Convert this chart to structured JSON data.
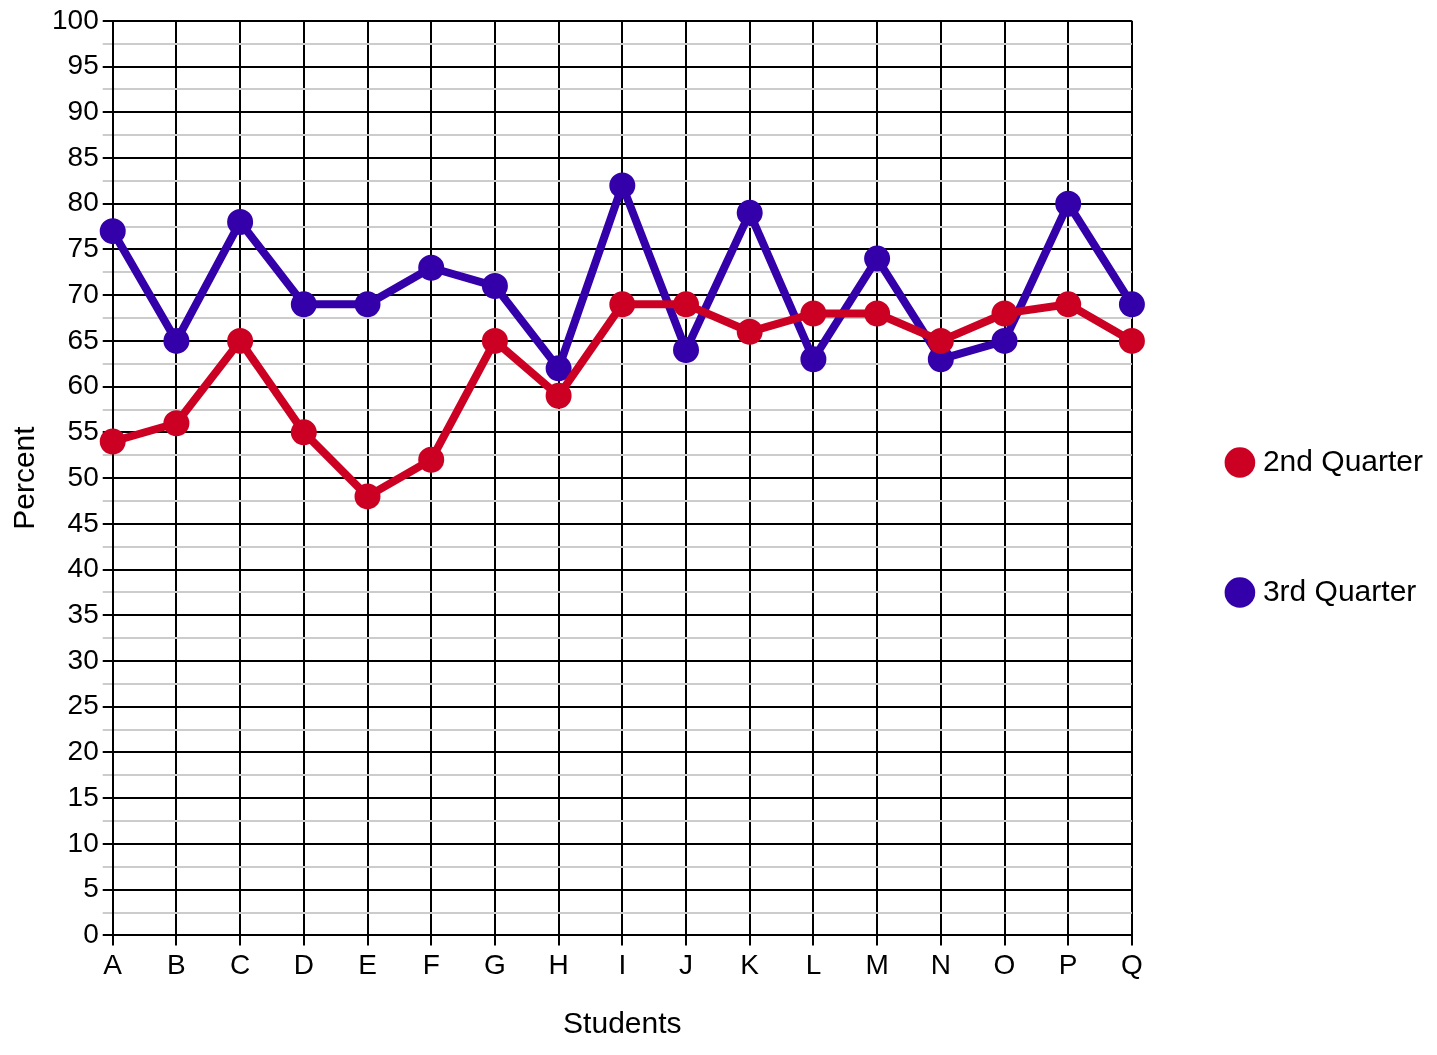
{
  "chart_data": {
    "type": "line",
    "xlabel": "Students",
    "ylabel": "Percent",
    "categories": [
      "A",
      "B",
      "C",
      "D",
      "E",
      "F",
      "G",
      "H",
      "I",
      "J",
      "K",
      "L",
      "M",
      "N",
      "O",
      "P",
      "Q"
    ],
    "series": [
      {
        "name": "2nd Quarter",
        "color": "#cc0022",
        "values": [
          54,
          56,
          65,
          55,
          48,
          52,
          65,
          59,
          69,
          69,
          66,
          68,
          68,
          65,
          68,
          69,
          65
        ]
      },
      {
        "name": "3rd Quarter",
        "color": "#3300aa",
        "values": [
          77,
          65,
          78,
          69,
          69,
          73,
          71,
          62,
          82,
          64,
          79,
          63,
          74,
          63,
          65,
          80,
          69
        ]
      }
    ],
    "ylim": [
      0,
      100
    ],
    "yticks": [
      0,
      {
        "value": 2.5,
        "label": null
      },
      5,
      {
        "value": 7.5,
        "label": null
      },
      10,
      {
        "value": 12.5,
        "label": null
      },
      15,
      {
        "value": 17.5,
        "label": null
      },
      20,
      {
        "value": 22.5,
        "label": null
      },
      25,
      {
        "value": 27.5,
        "label": null
      },
      30,
      {
        "value": 32.5,
        "label": null
      },
      35,
      {
        "value": 37.5,
        "label": null
      },
      40,
      {
        "value": 42.5,
        "label": null
      },
      45,
      {
        "value": 47.5,
        "label": null
      },
      50,
      {
        "value": 52.5,
        "label": null
      },
      55,
      {
        "value": 57.5,
        "label": null
      },
      60,
      {
        "value": 62.5,
        "label": null
      },
      65,
      {
        "value": 67.5,
        "label": null
      },
      70,
      {
        "value": 72.5,
        "label": null
      },
      75,
      {
        "value": 77.5,
        "label": null
      },
      80,
      {
        "value": 82.5,
        "label": null
      },
      85,
      {
        "value": 87.5,
        "label": null
      },
      90,
      {
        "value": 92.5,
        "label": null
      },
      95,
      {
        "value": 97.5,
        "label": null
      },
      100
    ],
    "grid": true,
    "legend": "right",
    "marker": "circle",
    "line_style": "solid"
  }
}
